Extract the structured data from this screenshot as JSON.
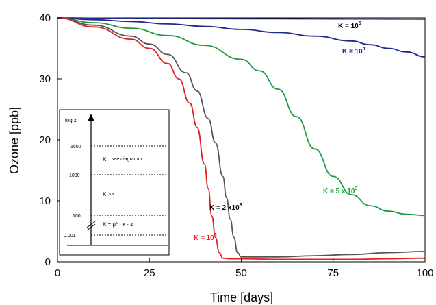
{
  "chart_data": {
    "type": "line",
    "xlabel": "Time [days]",
    "ylabel": "Ozone [ppb]",
    "xlim": [
      0,
      100
    ],
    "ylim": [
      0,
      40
    ],
    "xticks": [
      "0",
      "25",
      "50",
      "75",
      "100"
    ],
    "yticks": [
      "0",
      "10",
      "20",
      "30",
      "40"
    ],
    "series": [
      {
        "name": "K = 10^5",
        "label_main": "K = 10",
        "label_sup": "5",
        "color": "#1f2a8c",
        "x": [
          0,
          10,
          20,
          30,
          40,
          50,
          60,
          70,
          80,
          90,
          100
        ],
        "y": [
          40,
          39.95,
          39.9,
          39.88,
          39.86,
          39.85,
          39.84,
          39.83,
          39.82,
          39.81,
          39.8
        ]
      },
      {
        "name": "K = 10^4",
        "label_main": "K = 10",
        "label_sup": "4",
        "color": "#1f2a8c",
        "x": [
          0,
          10,
          20,
          30,
          40,
          50,
          60,
          70,
          80,
          85,
          90,
          95,
          100
        ],
        "y": [
          40,
          39.7,
          39.4,
          39.0,
          38.6,
          38.1,
          37.6,
          37.0,
          36.2,
          35.6,
          35.0,
          34.4,
          33.6
        ]
      },
      {
        "name": "K = 5 x 10^3",
        "label_main": "K = 5 x 10",
        "label_sup": "3",
        "color": "#1e9a3c",
        "x": [
          0,
          10,
          20,
          30,
          40,
          50,
          55,
          60,
          65,
          70,
          75,
          80,
          85,
          90,
          95,
          100
        ],
        "y": [
          40,
          39.2,
          38.3,
          37.1,
          35.5,
          33.2,
          31.3,
          28.3,
          23.8,
          18.5,
          14.0,
          11.0,
          9.2,
          8.3,
          7.8,
          7.6
        ]
      },
      {
        "name": "K = 2 x 10^3",
        "label_main": "K = 2 x10",
        "label_sup": "3",
        "color": "#555555",
        "x": [
          0,
          10,
          20,
          25,
          30,
          35,
          38,
          41,
          43,
          45,
          46,
          47,
          48,
          49,
          50,
          55,
          60,
          70,
          80,
          90,
          100
        ],
        "y": [
          40,
          38.8,
          37.0,
          35.7,
          34.0,
          31.0,
          28.0,
          23.5,
          19.5,
          14.0,
          10.5,
          7.0,
          4.0,
          1.5,
          0.8,
          0.8,
          0.8,
          1.0,
          1.2,
          1.5,
          1.7
        ]
      },
      {
        "name": "K = 10^3",
        "label_main": "K = 10",
        "label_sup": "3",
        "color": "#e02020",
        "x": [
          0,
          10,
          20,
          25,
          30,
          33,
          36,
          38,
          40,
          41,
          42,
          43,
          44,
          45,
          47,
          50,
          60,
          70,
          80,
          90,
          100
        ],
        "y": [
          40,
          38.5,
          36.5,
          35.0,
          32.5,
          30.0,
          26.0,
          22.0,
          16.0,
          12.0,
          7.5,
          4.0,
          1.5,
          0.6,
          0.5,
          0.5,
          0.4,
          0.4,
          0.4,
          0.5,
          0.6
        ]
      }
    ],
    "inset": {
      "axis_label": "log z",
      "levels": [
        "1500",
        "1000",
        "100",
        "0.001"
      ],
      "zone1": "K",
      "zone1_note": "see diagramm",
      "zone2": "K   >>",
      "zone3": "K  = μ* · κ · z"
    }
  }
}
